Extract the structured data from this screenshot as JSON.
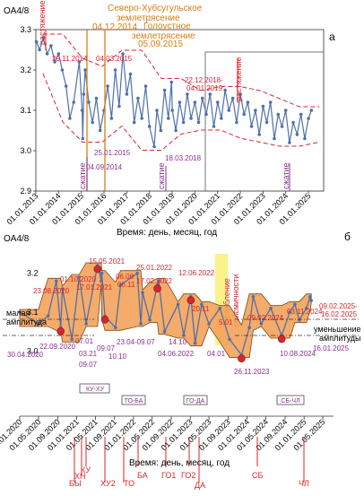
{
  "chart_data": [
    {
      "panel": "а",
      "type": "line",
      "ylabel": "OA4/8",
      "xlabel": "Время: день, месяц, год",
      "ylim": [
        2.9,
        3.3
      ],
      "yticks": [
        "2.9",
        "3.0",
        "3.1",
        "3.2",
        "3.3"
      ],
      "xtick_labels": [
        "01.01.2013",
        "01.01.2014",
        "01.01.2015",
        "01.01.2016",
        "01.01.2017",
        "01.01.2018",
        "01.01.2019",
        "01.01.2020",
        "01.01.2021",
        "01.01.2022",
        "01.01.2023",
        "01.01.2024",
        "01.01.2025"
      ],
      "series": [
        {
          "color": "#4f71a8",
          "x": [
            "2013-01-10",
            "2013-03-01",
            "2013-05-01",
            "2013-07-01",
            "2013-09-01",
            "2013-11-01",
            "2014-01-01",
            "2014-03-01",
            "2014-05-01",
            "2014-07-01",
            "2014-09-01",
            "2014-11-29",
            "2015-01-15",
            "2015-01-25",
            "2015-02-10",
            "2015-03-04",
            "2015-05-01",
            "2015-07-01",
            "2015-09-01",
            "2015-11-01",
            "2016-01-01",
            "2016-03-01",
            "2016-05-01",
            "2016-07-01",
            "2016-09-01",
            "2016-11-01",
            "2017-01-01",
            "2017-03-01",
            "2017-05-01",
            "2017-07-01",
            "2017-09-01",
            "2017-11-01",
            "2018-01-01",
            "2018-03-18",
            "2018-05-01",
            "2018-07-01",
            "2018-09-01",
            "2018-11-01",
            "2018-12-22",
            "2019-01-04",
            "2019-03-01",
            "2019-05-01",
            "2019-07-01",
            "2019-09-01",
            "2019-11-01",
            "2020-01-01",
            "2020-03-01",
            "2020-05-01",
            "2020-07-01",
            "2020-09-01",
            "2020-11-01",
            "2021-01-01",
            "2021-03-01",
            "2021-05-01",
            "2021-07-01",
            "2021-09-01",
            "2021-11-01",
            "2022-01-01",
            "2022-03-01",
            "2022-05-01",
            "2022-07-01",
            "2022-09-01",
            "2022-11-01",
            "2023-01-01",
            "2023-03-01",
            "2023-05-01",
            "2023-07-01",
            "2023-09-01",
            "2023-11-01",
            "2024-01-01",
            "2024-03-01",
            "2024-05-01",
            "2024-07-01",
            "2024-09-01",
            "2024-11-01",
            "2025-01-01",
            "2025-02-15"
          ],
          "values": [
            3.27,
            3.25,
            3.28,
            3.24,
            3.26,
            3.22,
            3.24,
            3.2,
            3.16,
            3.08,
            3.12,
            3.22,
            3.1,
            3.03,
            3.14,
            3.2,
            3.12,
            3.07,
            3.13,
            3.05,
            3.1,
            3.16,
            3.08,
            3.2,
            3.11,
            3.24,
            3.14,
            3.19,
            3.07,
            3.13,
            3.08,
            3.16,
            3.06,
            3.01,
            3.1,
            3.05,
            3.15,
            3.08,
            3.17,
            3.1,
            3.05,
            3.12,
            3.07,
            3.14,
            3.08,
            3.12,
            3.07,
            3.13,
            3.09,
            3.14,
            3.06,
            3.12,
            3.08,
            3.15,
            3.1,
            3.13,
            3.07,
            3.14,
            3.09,
            3.12,
            3.06,
            3.1,
            3.04,
            3.11,
            3.07,
            3.12,
            3.03,
            3.09,
            3.06,
            3.1,
            3.02,
            3.07,
            3.04,
            3.09,
            3.03,
            3.08,
            3.1
          ]
        }
      ],
      "annotations": [
        {
          "text": "Северо-Хубсугульское",
          "color": "#e07b10"
        },
        {
          "text": "землетрясение",
          "color": "#e07b10"
        },
        {
          "text": "04.12.2014",
          "color": "#e07b10"
        },
        {
          "text": "Голоустное",
          "color": "#e07b10"
        },
        {
          "text": "землетрясение",
          "color": "#e07b10"
        },
        {
          "text": "05.09.2015",
          "color": "#e07b10"
        },
        {
          "text": "растяжение",
          "color": "#d8262e"
        },
        {
          "text": "растяжение",
          "color": "#d8262e"
        },
        {
          "text": "сжатие",
          "color": "#8b2f8e"
        },
        {
          "text": "сжатие",
          "color": "#8b2f8e"
        },
        {
          "text": "сжатие",
          "color": "#8b2f8e"
        },
        {
          "text": "29.11.2014",
          "color": "#d8262e"
        },
        {
          "text": "04.03.2015",
          "color": "#d8262e"
        },
        {
          "text": "25.01.2015",
          "color": "#8b2f8e"
        },
        {
          "text": "04.09.2014",
          "color": "#8b2f8e"
        },
        {
          "text": "18.03.2018",
          "color": "#8b2f8e"
        },
        {
          "text": "22.12.2018-",
          "color": "#d8262e"
        },
        {
          "text": "04.01.2019",
          "color": "#d8262e"
        }
      ]
    },
    {
      "panel": "б",
      "type": "area",
      "ylabel": "OA4/8",
      "xlabel": "Время: день, месяц, год",
      "ylim": [
        2.95,
        3.25
      ],
      "yticks": [
        "3.0",
        "3.1",
        "3.2"
      ],
      "xtick_labels": [
        "01.01.2020",
        "01.05.2020",
        "01.09.2020",
        "01.01.2021",
        "01.05.2021",
        "01.09.2021",
        "01.01.2022",
        "01.05.2022",
        "01.09.2022",
        "01.01.2023",
        "01.05.2023",
        "01.09.2023",
        "01.01.2024",
        "01.05.2024",
        "01.09.2024",
        "01.01.2025",
        "01.05.2025"
      ],
      "series": [
        {
          "color": "#4f71a8",
          "x": [
            "2020-01-01",
            "2020-04-30",
            "2020-07-01",
            "2020-08-23",
            "2020-09-20",
            "2020-10-01",
            "2020-12-01",
            "2021-01-17",
            "2021-03-03",
            "2021-05-15",
            "2021-06-08",
            "2021-06-11",
            "2021-07-01",
            "2021-09-07",
            "2021-10-10",
            "2022-01-25",
            "2022-02-17",
            "2022-03-01",
            "2022-04-15",
            "2022-06-04",
            "2022-06-12",
            "2022-07-20",
            "2022-10-14",
            "2022-11-20",
            "2023-01-04",
            "2023-02-01",
            "2023-03-15",
            "2023-05-01",
            "2023-07-10",
            "2023-09-10",
            "2023-11-26",
            "2024-01-15",
            "2024-02-09",
            "2024-04-01",
            "2024-06-01",
            "2024-08-10",
            "2024-10-01",
            "2024-11-03",
            "2024-12-01",
            "2025-01-16",
            "2025-02-09",
            "2025-02-16"
          ],
          "values": [
            3.1,
            3.07,
            3.09,
            3.18,
            3.06,
            3.16,
            3.03,
            3.19,
            3.07,
            3.22,
            3.18,
            3.2,
            3.09,
            3.06,
            3.17,
            3.2,
            3.07,
            3.15,
            3.08,
            3.17,
            3.18,
            3.05,
            3.12,
            3.04,
            3.14,
            3.02,
            3.12,
            3.07,
            3.11,
            3.03,
            2.99,
            3.06,
            3.14,
            3.07,
            3.11,
            3.04,
            3.1,
            3.12,
            3.08,
            3.11,
            3.14,
            3.13
          ]
        }
      ],
      "annotations": [
        {
          "text": "малая",
          "color": "#000000"
        },
        {
          "text": "амплитуда",
          "color": "#000000"
        },
        {
          "text": "уменьшение",
          "color": "#000000"
        },
        {
          "text": "амплитуды",
          "color": "#000000"
        },
        {
          "text": "ослабление",
          "color": "#d8262e"
        },
        {
          "text": "сейсмичности",
          "color": "#d8262e"
        },
        {
          "text": "30.04.2020",
          "color": "#8b2f8e"
        },
        {
          "text": "23.08.2020",
          "color": "#d8262e"
        },
        {
          "text": "01.10.2020",
          "color": "#d8262e"
        },
        {
          "text": "22.09.2020",
          "color": "#8b2f8e"
        },
        {
          "text": "17.01.2021",
          "color": "#d8262e"
        },
        {
          "text": "15.05.2021",
          "color": "#d8262e"
        },
        {
          "text": "06.08",
          "color": "#d8262e"
        },
        {
          "text": "06.11",
          "color": "#d8262e"
        },
        {
          "text": "25.01.2022",
          "color": "#d8262e"
        },
        {
          "text": "17.02.2022",
          "color": "#d8262e"
        },
        {
          "text": "12.06.2022",
          "color": "#d8262e"
        },
        {
          "text": "07.01",
          "color": "#8b2f8e"
        },
        {
          "text": "03.21",
          "color": "#8b2f8e"
        },
        {
          "text": "09.07",
          "color": "#8b2f8e"
        },
        {
          "text": "09.07",
          "color": "#8b2f8e"
        },
        {
          "text": "10.10",
          "color": "#8b2f8e"
        },
        {
          "text": "23.04-09.07",
          "color": "#8b2f8e"
        },
        {
          "text": "14.10",
          "color": "#8b2f8e"
        },
        {
          "text": "04.06.2022",
          "color": "#8b2f8e"
        },
        {
          "text": "20.11",
          "color": "#d8262e"
        },
        {
          "text": "04.01",
          "color": "#8b2f8e"
        },
        {
          "text": "5.01",
          "color": "#d8262e"
        },
        {
          "text": "26.11.2023",
          "color": "#8b2f8e"
        },
        {
          "text": "09.02.2024",
          "color": "#d8262e"
        },
        {
          "text": "03.11.2024",
          "color": "#d8262e"
        },
        {
          "text": "10.08.2024",
          "color": "#8b2f8e"
        },
        {
          "text": "09.02.2025-",
          "color": "#d8262e"
        },
        {
          "text": "16.02.2025",
          "color": "#d8262e"
        },
        {
          "text": "16.01.2025",
          "color": "#8b2f8e"
        }
      ],
      "period_boxes": [
        "КУ-ХУ",
        "ТО-БА",
        "ГО-ДА",
        "СБ-ЧЛ"
      ],
      "event_markers": [
        "БЫ",
        "ХН",
        "КУ",
        "ХУ2",
        "ТО",
        "БА",
        "ГО1",
        "ГО2",
        "ДА",
        "СБ",
        "ЧЛ"
      ]
    }
  ],
  "panel_letters": {
    "a": "а",
    "b": "б"
  }
}
